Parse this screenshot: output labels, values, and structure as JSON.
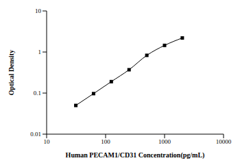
{
  "chart_data": {
    "type": "line",
    "x_label": "Human PECAM1/CD31 Concentration(pg/mL)",
    "y_label": "Optical Density",
    "log": true,
    "x": [
      31.25,
      62.5,
      125,
      250,
      500,
      1000,
      2000
    ],
    "values": [
      0.05,
      0.097,
      0.19,
      0.37,
      0.83,
      1.45,
      2.2
    ],
    "color": "#000000",
    "marker": "square",
    "line_style": "solid",
    "xlim": [
      10,
      10000
    ],
    "ylim": [
      0.01,
      10
    ],
    "xticks": [
      10,
      100,
      1000,
      10000
    ],
    "yticks": [
      0.01,
      0.1,
      1,
      10
    ],
    "grid": false
  }
}
